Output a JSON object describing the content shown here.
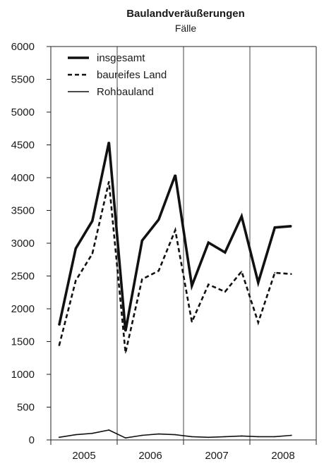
{
  "chart_data": {
    "type": "line",
    "title": "Baulandveräußerungen",
    "subtitle": "Fälle",
    "xlabel": "",
    "ylabel": "",
    "ylim": [
      0,
      6000
    ],
    "y_ticks": [
      0,
      500,
      1000,
      1500,
      2000,
      2500,
      3000,
      3500,
      4000,
      4500,
      5000,
      5500,
      6000
    ],
    "x_period_labels": [
      "2005",
      "2006",
      "2007",
      "2008"
    ],
    "x_periods_per_year": 4,
    "grid": "vertical lines at year boundaries",
    "legend": "top-left",
    "series": [
      {
        "name": "insgesamt",
        "style": "solid-thick",
        "values": [
          1750,
          2920,
          3340,
          4540,
          1660,
          3040,
          3360,
          4040,
          2350,
          3010,
          2860,
          3410,
          2400,
          3240,
          3260
        ]
      },
      {
        "name": "baureifes Land",
        "style": "dashed",
        "values": [
          1440,
          2430,
          2840,
          3940,
          1330,
          2450,
          2580,
          3200,
          1800,
          2370,
          2260,
          2570,
          1790,
          2550,
          2530
        ]
      },
      {
        "name": "Rohbauland",
        "style": "solid-thin",
        "values": [
          40,
          80,
          100,
          150,
          30,
          70,
          90,
          80,
          50,
          40,
          50,
          60,
          50,
          50,
          70
        ]
      }
    ]
  }
}
